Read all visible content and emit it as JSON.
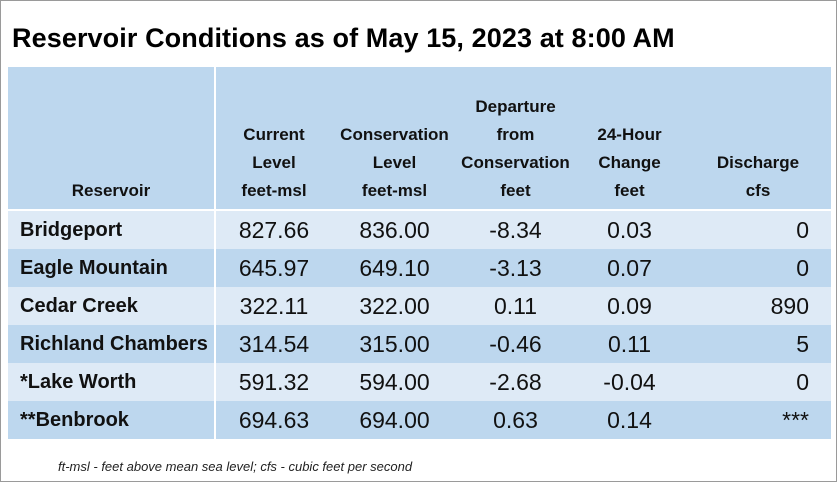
{
  "title": "Reservoir Conditions as of May 15, 2023 at 8:00 AM",
  "columns": [
    {
      "lines": [
        "Reservoir"
      ]
    },
    {
      "lines": [
        "Current",
        "Level",
        "feet-msl"
      ]
    },
    {
      "lines": [
        "Conservation",
        "Level",
        "feet-msl"
      ]
    },
    {
      "lines": [
        "Departure",
        "from",
        "Conservation",
        "feet"
      ]
    },
    {
      "lines": [
        "24-Hour",
        "Change",
        "feet"
      ]
    },
    {
      "lines": [
        "Discharge",
        "cfs"
      ]
    }
  ],
  "rows": [
    {
      "name": "Bridgeport",
      "current": "827.66",
      "conservation": "836.00",
      "departure": "-8.34",
      "change": "0.03",
      "discharge": "0"
    },
    {
      "name": "Eagle Mountain",
      "current": "645.97",
      "conservation": "649.10",
      "departure": "-3.13",
      "change": "0.07",
      "discharge": "0"
    },
    {
      "name": "Cedar Creek",
      "current": "322.11",
      "conservation": "322.00",
      "departure": "0.11",
      "change": "0.09",
      "discharge": "890"
    },
    {
      "name": "Richland Chambers",
      "current": "314.54",
      "conservation": "315.00",
      "departure": "-0.46",
      "change": "0.11",
      "discharge": "5"
    },
    {
      "name": "*Lake Worth",
      "current": "591.32",
      "conservation": "594.00",
      "departure": "-2.68",
      "change": "-0.04",
      "discharge": "0"
    },
    {
      "name": "**Benbrook",
      "current": "694.63",
      "conservation": "694.00",
      "departure": "0.63",
      "change": "0.14",
      "discharge": "***"
    }
  ],
  "footnote": "ft-msl - feet above mean sea level; cfs - cubic feet per second",
  "colors": {
    "header_bg": "#bdd7ee",
    "row_light": "#deeaf6",
    "row_dark": "#bdd7ee"
  }
}
